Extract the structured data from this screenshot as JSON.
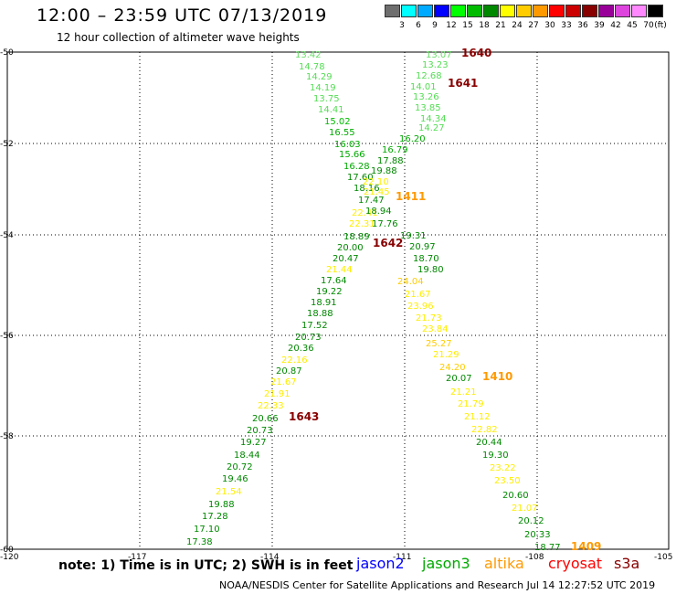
{
  "header": {
    "title": "12:00 – 23:59 UTC 07/13/2019",
    "subtitle": "12 hour collection of altimeter wave heights"
  },
  "legend": {
    "unit": "(ft)",
    "colors": [
      "#6e6e6e",
      "#00ffff",
      "#00aaff",
      "#0000ff",
      "#00ff00",
      "#00bb00",
      "#008800",
      "#ffff00",
      "#ffcc00",
      "#ff9900",
      "#ff0000",
      "#cc0000",
      "#880000",
      "#990099",
      "#dd44dd",
      "#ff88ff",
      "#000000"
    ],
    "ticks": [
      "3",
      "6",
      "9",
      "12",
      "15",
      "18",
      "21",
      "24",
      "27",
      "30",
      "33",
      "36",
      "39",
      "42",
      "45",
      "70"
    ]
  },
  "axes": {
    "lon_labels": [
      "-120",
      "-117",
      "-114",
      "-111",
      "-108",
      "-105"
    ],
    "lat_labels": [
      "-50",
      "-52",
      "-54",
      "-56",
      "-58",
      "-60"
    ]
  },
  "track_labels": [
    {
      "text": "1640",
      "color": "#880000"
    },
    {
      "text": "1641",
      "color": "#880000"
    },
    {
      "text": "1411",
      "color": "#ff9900"
    },
    {
      "text": "1642",
      "color": "#880000"
    },
    {
      "text": "1410",
      "color": "#ff9900"
    },
    {
      "text": "1643",
      "color": "#880000"
    },
    {
      "text": "1409",
      "color": "#ff9900"
    }
  ],
  "observations": [
    {
      "v": "13.42",
      "c": "#66dd66"
    },
    {
      "v": "14.78",
      "c": "#55dd55"
    },
    {
      "v": "14.29",
      "c": "#55dd55"
    },
    {
      "v": "14.19",
      "c": "#55dd55"
    },
    {
      "v": "13.75",
      "c": "#55dd55"
    },
    {
      "v": "14.41",
      "c": "#55dd55"
    },
    {
      "v": "15.02",
      "c": "#00bb00"
    },
    {
      "v": "16.55",
      "c": "#00aa00"
    },
    {
      "v": "16.03",
      "c": "#00aa00"
    },
    {
      "v": "15.66",
      "c": "#00aa00"
    },
    {
      "v": "16.28",
      "c": "#00aa00"
    },
    {
      "v": "17.60",
      "c": "#008800"
    },
    {
      "v": "18.16",
      "c": "#008800"
    },
    {
      "v": "17.47",
      "c": "#008800"
    },
    {
      "v": "22.41",
      "c": "#ffee00"
    },
    {
      "v": "22.31",
      "c": "#ffee00"
    },
    {
      "v": "18.89",
      "c": "#008800"
    },
    {
      "v": "20.00",
      "c": "#008800"
    },
    {
      "v": "20.47",
      "c": "#008800"
    },
    {
      "v": "21.44",
      "c": "#ffee00"
    },
    {
      "v": "17.64",
      "c": "#008800"
    },
    {
      "v": "19.22",
      "c": "#008800"
    },
    {
      "v": "18.91",
      "c": "#008800"
    },
    {
      "v": "18.88",
      "c": "#008800"
    },
    {
      "v": "17.52",
      "c": "#008800"
    },
    {
      "v": "20.73",
      "c": "#008800"
    },
    {
      "v": "20.36",
      "c": "#008800"
    },
    {
      "v": "22.16",
      "c": "#ffee00"
    },
    {
      "v": "20.87",
      "c": "#008800"
    },
    {
      "v": "21.67",
      "c": "#ffee00"
    },
    {
      "v": "21.91",
      "c": "#ffee00"
    },
    {
      "v": "22.33",
      "c": "#ffee00"
    },
    {
      "v": "20.66",
      "c": "#008800"
    },
    {
      "v": "20.73",
      "c": "#008800"
    },
    {
      "v": "19.27",
      "c": "#008800"
    },
    {
      "v": "18.44",
      "c": "#008800"
    },
    {
      "v": "20.72",
      "c": "#008800"
    },
    {
      "v": "19.46",
      "c": "#008800"
    },
    {
      "v": "21.54",
      "c": "#ffee00"
    },
    {
      "v": "19.88",
      "c": "#008800"
    },
    {
      "v": "17.28",
      "c": "#008800"
    },
    {
      "v": "17.10",
      "c": "#008800"
    },
    {
      "v": "17.38",
      "c": "#008800"
    },
    {
      "v": "13.07",
      "c": "#66dd66"
    },
    {
      "v": "13.23",
      "c": "#55dd55"
    },
    {
      "v": "12.68",
      "c": "#55dd55"
    },
    {
      "v": "14.01",
      "c": "#55dd55"
    },
    {
      "v": "13.26",
      "c": "#55dd55"
    },
    {
      "v": "13.85",
      "c": "#55dd55"
    },
    {
      "v": "14.34",
      "c": "#55dd55"
    },
    {
      "v": "14.27",
      "c": "#55dd55"
    },
    {
      "v": "16.20",
      "c": "#00aa00"
    },
    {
      "v": "16.79",
      "c": "#00aa00"
    },
    {
      "v": "17.88",
      "c": "#008800"
    },
    {
      "v": "19.88",
      "c": "#008800"
    },
    {
      "v": "22.10",
      "c": "#ffee00"
    },
    {
      "v": "21.45",
      "c": "#ffee00"
    },
    {
      "v": "18.94",
      "c": "#008800"
    },
    {
      "v": "17.76",
      "c": "#008800"
    },
    {
      "v": "19.31",
      "c": "#008800"
    },
    {
      "v": "20.97",
      "c": "#008800"
    },
    {
      "v": "18.70",
      "c": "#008800"
    },
    {
      "v": "19.80",
      "c": "#008800"
    },
    {
      "v": "24.04",
      "c": "#ffcc00"
    },
    {
      "v": "21.67",
      "c": "#ffee00"
    },
    {
      "v": "23.96",
      "c": "#ffee00"
    },
    {
      "v": "21.73",
      "c": "#ffee00"
    },
    {
      "v": "23.84",
      "c": "#ffee00"
    },
    {
      "v": "25.27",
      "c": "#ffcc00"
    },
    {
      "v": "21.29",
      "c": "#ffee00"
    },
    {
      "v": "24.20",
      "c": "#ffcc00"
    },
    {
      "v": "20.07",
      "c": "#008800"
    },
    {
      "v": "21.21",
      "c": "#ffee00"
    },
    {
      "v": "21.79",
      "c": "#ffee00"
    },
    {
      "v": "21.12",
      "c": "#ffee00"
    },
    {
      "v": "22.82",
      "c": "#ffee00"
    },
    {
      "v": "20.44",
      "c": "#008800"
    },
    {
      "v": "19.30",
      "c": "#008800"
    },
    {
      "v": "23.22",
      "c": "#ffee00"
    },
    {
      "v": "23.50",
      "c": "#ffee00"
    },
    {
      "v": "20.60",
      "c": "#008800"
    },
    {
      "v": "21.07",
      "c": "#ffee00"
    },
    {
      "v": "20.12",
      "c": "#008800"
    },
    {
      "v": "20.33",
      "c": "#008800"
    },
    {
      "v": "18.77",
      "c": "#008800"
    }
  ],
  "note": "note: 1) Time is in UTC; 2) SWH is in feet",
  "satellites": [
    {
      "name": "jason2",
      "color": "#0000ff"
    },
    {
      "name": "jason3",
      "color": "#00aa00"
    },
    {
      "name": "altika",
      "color": "#ff9900"
    },
    {
      "name": "cryosat",
      "color": "#ff0000"
    },
    {
      "name": "s3a",
      "color": "#880000"
    }
  ],
  "footer": "NOAA/NESDIS Center for Satellite Applications and Research   Jul 14 12:27:52 UTC 2019"
}
